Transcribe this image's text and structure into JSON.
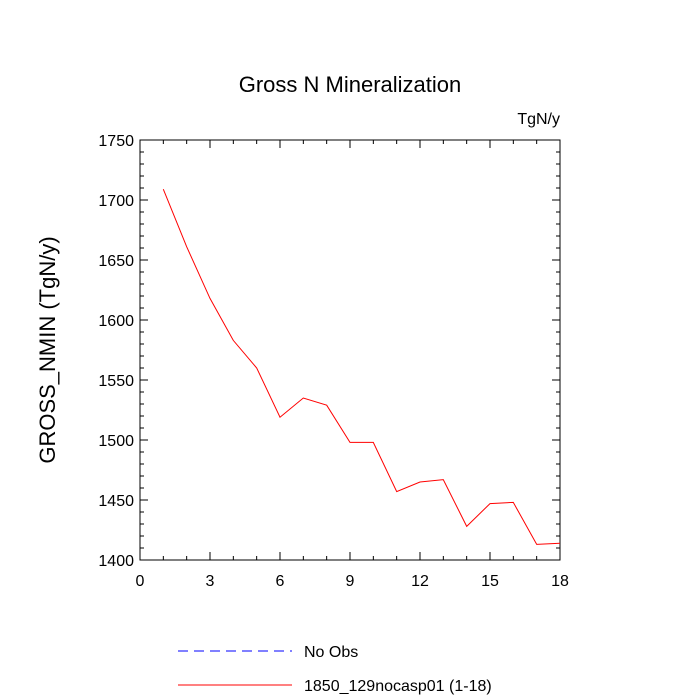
{
  "chart_data": {
    "type": "line",
    "title": "Gross N Mineralization",
    "units": "TgN/y",
    "xlabel": "",
    "ylabel": "GROSS_NMIN  (TgN/y)",
    "xlim": [
      0,
      18
    ],
    "ylim": [
      1400,
      1750
    ],
    "xticks": [
      0,
      3,
      6,
      9,
      12,
      15,
      18
    ],
    "yticks": [
      1400,
      1450,
      1500,
      1550,
      1600,
      1650,
      1700,
      1750
    ],
    "x_minor_step": 1,
    "y_minor_step": 10,
    "series": [
      {
        "name": "1850_129nocasp01 (1-18)",
        "color": "#ff0000",
        "dash": "solid",
        "x": [
          1,
          2,
          3,
          4,
          5,
          6,
          7,
          8,
          9,
          10,
          11,
          12,
          13,
          14,
          15,
          16,
          17,
          18
        ],
        "values": [
          1709,
          1661,
          1618,
          1583,
          1560,
          1519,
          1535,
          1529,
          1498,
          1498,
          1457,
          1465,
          1467,
          1428,
          1447,
          1448,
          1413,
          1414
        ]
      }
    ],
    "legend": [
      {
        "label": "No Obs",
        "color": "#0000ff",
        "dash": "dashed"
      },
      {
        "label": "1850_129nocasp01 (1-18)",
        "color": "#ff0000",
        "dash": "solid"
      }
    ],
    "legend_position": "bottom-center",
    "grid": false
  }
}
